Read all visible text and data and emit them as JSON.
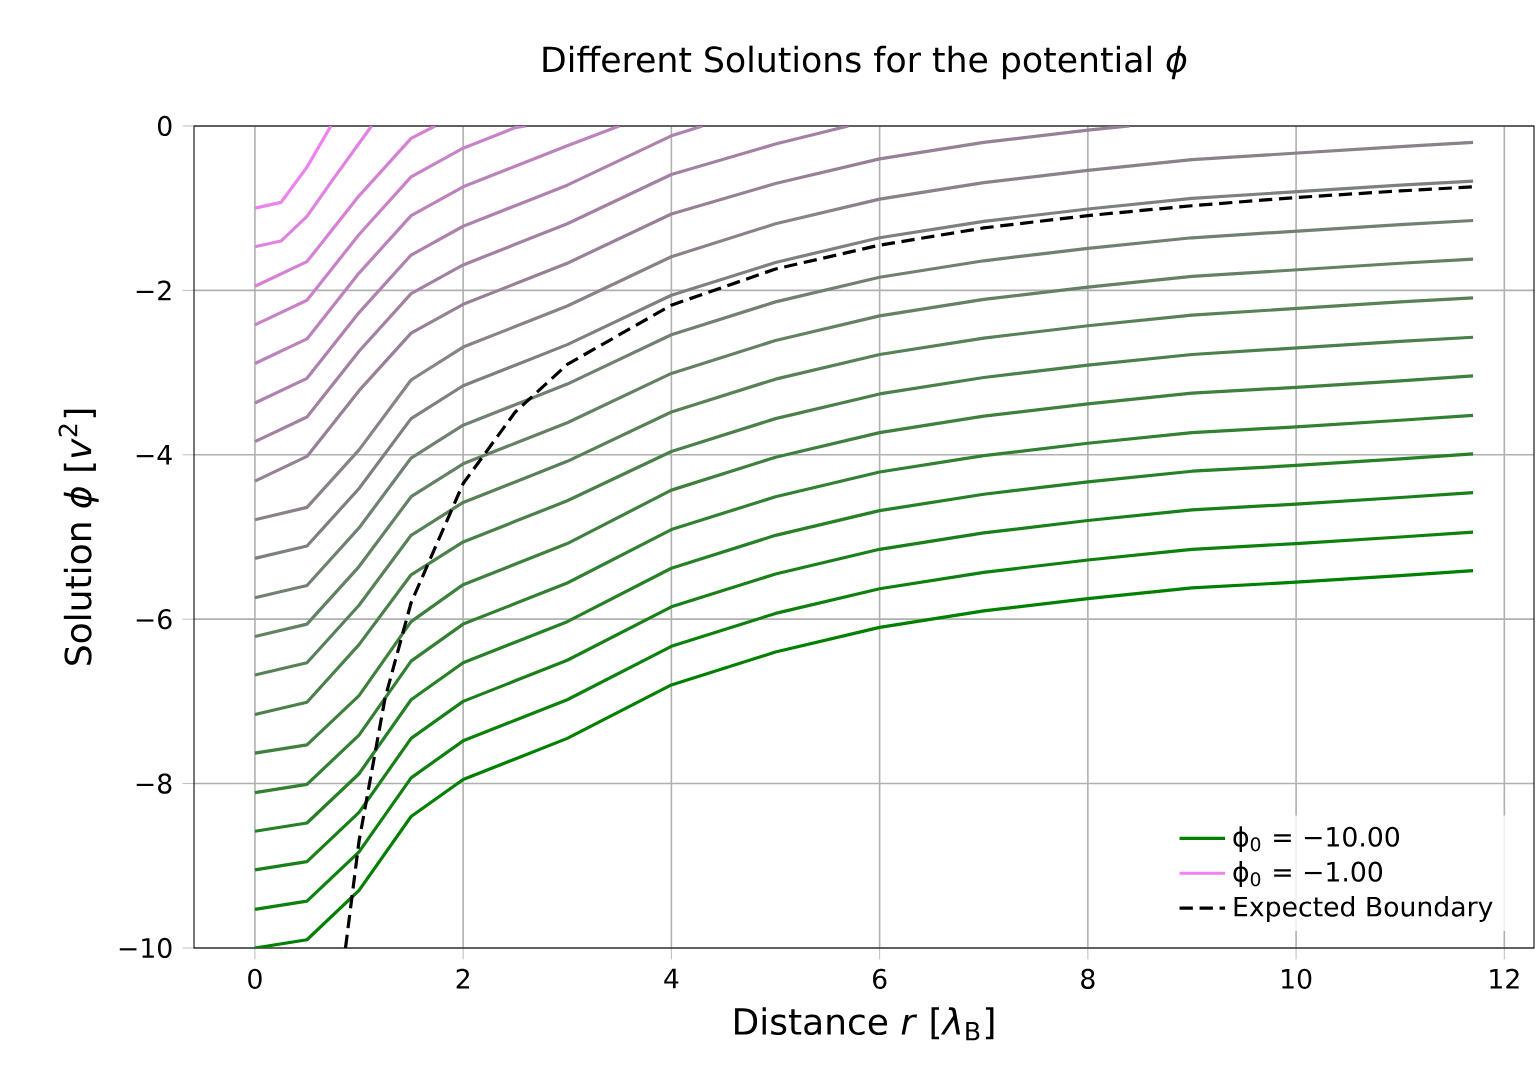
{
  "chart_data": {
    "type": "line",
    "title": "Different Solutions for the potential *ϕ*",
    "xlabel": "Distance *r* [*λ*$_{B}$]",
    "ylabel": "Solution *ϕ* [*v*$^{2}$]",
    "xlim": [
      -0.585,
      12.285
    ],
    "ylim": [
      -10,
      0
    ],
    "xticks": [
      0,
      2,
      4,
      6,
      8,
      10,
      12
    ],
    "yticks": [
      {
        "value": -10,
        "label": "−10"
      },
      {
        "value": -8,
        "label": "−8"
      },
      {
        "value": -6,
        "label": "−6"
      },
      {
        "value": -4,
        "label": "−4"
      },
      {
        "value": -2,
        "label": "−2"
      },
      0
    ],
    "grid": true,
    "legend": "bottom right",
    "series": [
      {
        "name": "ϕ$_{0}$ = −10.00",
        "color": "#008000",
        "x": [
          0,
          0.5,
          1,
          1.5,
          2,
          2.5,
          3,
          4,
          5,
          6,
          7,
          8,
          9,
          10,
          11,
          11.7
        ],
        "values": [
          -10,
          -9.9,
          -9.3,
          -8.4,
          -7.95,
          -7.7,
          -7.45,
          -6.8,
          -6.4,
          -6.1,
          -5.9,
          -5.75,
          -5.62,
          -5.55,
          -5.47,
          -5.41
        ]
      },
      {
        "color": "#0d800d",
        "x": [
          0,
          0.5,
          1,
          1.5,
          2,
          2.5,
          3,
          4,
          5,
          6,
          7,
          8,
          9,
          10,
          11,
          11.7
        ],
        "values": [
          -9.53,
          -9.43,
          -8.83,
          -7.93,
          -7.48,
          -7.23,
          -6.98,
          -6.33,
          -5.93,
          -5.63,
          -5.43,
          -5.28,
          -5.15,
          -5.08,
          -5.0,
          -4.94
        ]
      },
      {
        "color": "#198019",
        "x": [
          0,
          0.5,
          1,
          1.5,
          2,
          2.5,
          3,
          4,
          5,
          6,
          7,
          8,
          9,
          10,
          11,
          11.7
        ],
        "values": [
          -9.05,
          -8.95,
          -8.35,
          -7.45,
          -7.0,
          -6.75,
          -6.5,
          -5.85,
          -5.45,
          -5.15,
          -4.95,
          -4.8,
          -4.67,
          -4.6,
          -4.52,
          -4.46
        ]
      },
      {
        "color": "#268026",
        "x": [
          0,
          0.5,
          1,
          1.5,
          2,
          2.5,
          3,
          4,
          5,
          6,
          7,
          8,
          9,
          10,
          11,
          11.7
        ],
        "values": [
          -8.58,
          -8.48,
          -7.88,
          -6.98,
          -6.53,
          -6.28,
          -6.03,
          -5.38,
          -4.98,
          -4.68,
          -4.48,
          -4.33,
          -4.2,
          -4.13,
          -4.05,
          -3.99
        ]
      },
      {
        "color": "#328032",
        "x": [
          0,
          0.5,
          1,
          1.5,
          2,
          2.5,
          3,
          4,
          5,
          6,
          7,
          8,
          9,
          10,
          11,
          11.7
        ],
        "values": [
          -8.11,
          -8.01,
          -7.41,
          -6.51,
          -6.06,
          -5.81,
          -5.56,
          -4.91,
          -4.51,
          -4.21,
          -4.01,
          -3.86,
          -3.73,
          -3.66,
          -3.58,
          -3.52
        ]
      },
      {
        "color": "#3f803f",
        "x": [
          0,
          0.5,
          1,
          1.5,
          2,
          2.5,
          3,
          4,
          5,
          6,
          7,
          8,
          9,
          10,
          11,
          11.7
        ],
        "values": [
          -7.63,
          -7.53,
          -6.93,
          -6.03,
          -5.58,
          -5.33,
          -5.08,
          -4.43,
          -4.03,
          -3.73,
          -3.53,
          -3.38,
          -3.25,
          -3.18,
          -3.1,
          -3.04
        ]
      },
      {
        "color": "#4b804b",
        "x": [
          0,
          0.5,
          1,
          1.5,
          2,
          2.5,
          3,
          4,
          5,
          6,
          7,
          8,
          9,
          10,
          11,
          11.7
        ],
        "values": [
          -7.16,
          -7.01,
          -6.31,
          -5.46,
          -5.06,
          -4.81,
          -4.56,
          -3.96,
          -3.56,
          -3.26,
          -3.06,
          -2.91,
          -2.78,
          -2.7,
          -2.62,
          -2.57
        ]
      },
      {
        "color": "#588158",
        "x": [
          0,
          0.5,
          1,
          1.5,
          2,
          2.5,
          3,
          4,
          5,
          6,
          7,
          8,
          9,
          10,
          11,
          11.7
        ],
        "values": [
          -6.68,
          -6.53,
          -5.83,
          -4.98,
          -4.58,
          -4.33,
          -4.08,
          -3.48,
          -3.08,
          -2.78,
          -2.58,
          -2.43,
          -2.3,
          -2.22,
          -2.14,
          -2.09
        ]
      },
      {
        "color": "#648164",
        "x": [
          0,
          0.5,
          1,
          1.5,
          2,
          2.5,
          3,
          4,
          5,
          6,
          7,
          8,
          9,
          10,
          11,
          11.7
        ],
        "values": [
          -6.21,
          -6.06,
          -5.36,
          -4.51,
          -4.11,
          -3.86,
          -3.61,
          -3.01,
          -2.61,
          -2.31,
          -2.11,
          -1.96,
          -1.83,
          -1.75,
          -1.67,
          -1.62
        ]
      },
      {
        "color": "#718171",
        "x": [
          0,
          0.5,
          1,
          1.5,
          2,
          2.5,
          3,
          4,
          5,
          6,
          7,
          8,
          9,
          10,
          11,
          11.7
        ],
        "values": [
          -5.74,
          -5.59,
          -4.89,
          -4.04,
          -3.64,
          -3.39,
          -3.14,
          -2.54,
          -2.14,
          -1.84,
          -1.64,
          -1.49,
          -1.36,
          -1.28,
          -1.2,
          -1.15
        ]
      },
      {
        "color": "#7d817d",
        "x": [
          0,
          0.5,
          1,
          1.5,
          2,
          2.5,
          3,
          4,
          5,
          6,
          7,
          8,
          9,
          10,
          11,
          11.7
        ],
        "values": [
          -5.26,
          -5.11,
          -4.41,
          -3.56,
          -3.16,
          -2.91,
          -2.66,
          -2.06,
          -1.66,
          -1.36,
          -1.16,
          -1.01,
          -0.88,
          -0.8,
          -0.72,
          -0.67
        ]
      },
      {
        "color": "#8a818a",
        "x": [
          0,
          0.5,
          1,
          1.5,
          2,
          2.5,
          3,
          4,
          5,
          6,
          7,
          8,
          9,
          10,
          11,
          11.7
        ],
        "values": [
          -4.79,
          -4.64,
          -3.94,
          -3.09,
          -2.69,
          -2.44,
          -2.19,
          -1.59,
          -1.19,
          -0.89,
          -0.69,
          -0.54,
          -0.41,
          -0.33,
          -0.25,
          -0.2
        ]
      },
      {
        "color": "#968196",
        "x": [
          0,
          0.5,
          1,
          1.5,
          2,
          2.5,
          3,
          4,
          5,
          6,
          7,
          8,
          8.4
        ],
        "values": [
          -4.32,
          -4.02,
          -3.22,
          -2.52,
          -2.17,
          -1.92,
          -1.67,
          -1.07,
          -0.7,
          -0.4,
          -0.2,
          -0.05,
          0
        ]
      },
      {
        "color": "#a381a3",
        "x": [
          0,
          0.5,
          1,
          1.5,
          2,
          2.5,
          3,
          4,
          5,
          5.7
        ],
        "values": [
          -3.84,
          -3.54,
          -2.74,
          -2.04,
          -1.69,
          -1.44,
          -1.19,
          -0.59,
          -0.22,
          0
        ]
      },
      {
        "color": "#af81af",
        "x": [
          0,
          0.5,
          1,
          1.5,
          2,
          2.5,
          3,
          4,
          4.3
        ],
        "values": [
          -3.37,
          -3.07,
          -2.27,
          -1.57,
          -1.22,
          -0.97,
          -0.72,
          -0.12,
          0
        ]
      },
      {
        "color": "#bc82bc",
        "x": [
          0,
          0.5,
          1,
          1.5,
          2,
          2.5,
          3,
          3.5
        ],
        "values": [
          -2.89,
          -2.59,
          -1.79,
          -1.09,
          -0.74,
          -0.49,
          -0.24,
          0
        ]
      },
      {
        "color": "#c882c8",
        "x": [
          0,
          0.5,
          1,
          1.5,
          2,
          2.5,
          2.6
        ],
        "values": [
          -2.42,
          -2.12,
          -1.32,
          -0.62,
          -0.27,
          -0.02,
          0
        ]
      },
      {
        "color": "#d582d5",
        "x": [
          0,
          0.5,
          1,
          1.5,
          1.73
        ],
        "values": [
          -1.95,
          -1.65,
          -0.85,
          -0.15,
          0
        ]
      },
      {
        "color": "#e182e1",
        "x": [
          0,
          0.25,
          0.5,
          0.75,
          1.12
        ],
        "values": [
          -1.47,
          -1.4,
          -1.1,
          -0.65,
          0
        ]
      },
      {
        "name": "ϕ$_{0}$ = −1.00",
        "color": "#ee82ee",
        "x": [
          0,
          0.25,
          0.5,
          0.73
        ],
        "values": [
          -1,
          -0.93,
          -0.5,
          0
        ]
      },
      {
        "name": "Expected Boundary",
        "color": "#000000",
        "line_style": "dashed",
        "x": [
          0.87,
          1,
          1.25,
          1.5,
          2,
          2.5,
          3,
          4,
          5,
          6,
          7,
          8,
          9,
          10,
          11,
          11.7
        ],
        "values": [
          -10,
          -8.7,
          -6.96,
          -5.8,
          -4.35,
          -3.48,
          -2.9,
          -2.18,
          -1.74,
          -1.45,
          -1.24,
          -1.09,
          -0.97,
          -0.87,
          -0.79,
          -0.74
        ]
      }
    ]
  }
}
